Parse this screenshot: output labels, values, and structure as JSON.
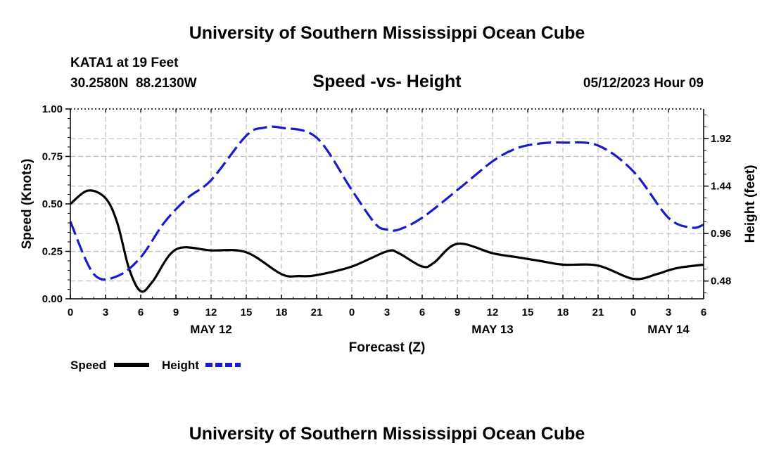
{
  "header": {
    "title_top": "University of Southern Mississippi Ocean Cube",
    "title_bottom": "University of Southern Mississippi Ocean Cube",
    "station": "KATA1 at 19 Feet",
    "coords": "30.2580N  88.2130W",
    "datetime": "05/12/2023 Hour 09"
  },
  "legend": {
    "speed_label": "Speed",
    "height_label": "Height"
  },
  "colors": {
    "speed": "#000000",
    "height": "#1a1acc",
    "grid": "#bdbdbd",
    "axis": "#000000"
  },
  "chart_data": {
    "type": "line",
    "title": "Speed -vs- Height",
    "xlabel": "Forecast (Z)",
    "ylabel": "Speed (Knots)",
    "y2label": "Height (feet)",
    "x_ticks": [
      "0",
      "3",
      "6",
      "9",
      "12",
      "15",
      "18",
      "21",
      "0",
      "3",
      "6",
      "9",
      "12",
      "15",
      "18",
      "21",
      "0",
      "3",
      "6"
    ],
    "day_labels": [
      {
        "label": "MAY 12",
        "x": 12
      },
      {
        "label": "MAY 13",
        "x": 36
      },
      {
        "label": "MAY 14",
        "x": 51
      }
    ],
    "xlim": [
      0,
      54
    ],
    "ylim": [
      0,
      1.0
    ],
    "y_ticks": [
      "0.00",
      "0.25",
      "0.50",
      "0.75",
      "1.00"
    ],
    "y_tick_values": [
      0,
      0.25,
      0.5,
      0.75,
      1.0
    ],
    "y2lim": [
      0.3,
      2.22
    ],
    "y2_ticks": [
      "0.48",
      "0.96",
      "1.44",
      "1.92"
    ],
    "y2_tick_values": [
      0.48,
      0.96,
      1.44,
      1.92
    ],
    "series": [
      {
        "name": "Speed",
        "axis": "left",
        "style": "solid",
        "x": [
          0,
          1.5,
          3,
          4,
          5,
          6,
          7,
          9,
          12,
          15,
          18,
          19.5,
          21,
          24,
          27,
          28,
          30,
          31,
          33,
          36,
          38,
          40,
          42,
          45,
          48,
          50,
          51,
          52,
          54
        ],
        "y": [
          0.5,
          0.57,
          0.53,
          0.4,
          0.16,
          0.04,
          0.09,
          0.26,
          0.255,
          0.245,
          0.13,
          0.12,
          0.125,
          0.17,
          0.25,
          0.24,
          0.17,
          0.19,
          0.29,
          0.24,
          0.22,
          0.2,
          0.18,
          0.175,
          0.105,
          0.13,
          0.15,
          0.165,
          0.18
        ]
      },
      {
        "name": "Height",
        "axis": "right",
        "style": "dashed",
        "x": [
          0,
          2,
          4,
          6,
          8,
          10,
          12,
          15,
          16.5,
          18,
          21,
          24,
          26,
          27,
          28,
          30,
          33,
          36,
          38,
          40,
          42,
          45,
          48,
          51,
          53,
          54
        ],
        "y": [
          1.08,
          0.55,
          0.53,
          0.72,
          1.07,
          1.32,
          1.5,
          1.95,
          2.03,
          2.03,
          1.93,
          1.4,
          1.06,
          1.0,
          1.0,
          1.12,
          1.4,
          1.69,
          1.82,
          1.87,
          1.88,
          1.85,
          1.59,
          1.12,
          1.02,
          1.05
        ]
      }
    ]
  }
}
